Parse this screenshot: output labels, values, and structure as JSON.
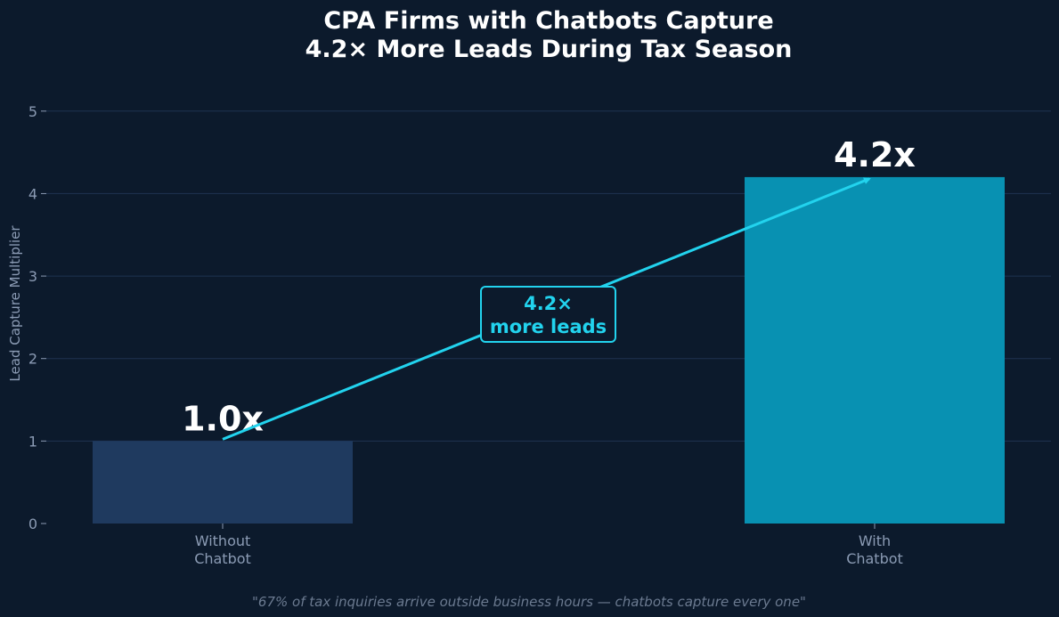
{
  "chart_data": {
    "type": "bar",
    "title_lines": [
      "CPA Firms with Chatbots Capture",
      "4.2× More Leads During Tax Season"
    ],
    "ylabel": "Lead Capture Multiplier",
    "xlabel": "",
    "ylim": [
      0,
      5.3
    ],
    "yticks": [
      0,
      1,
      2,
      3,
      4,
      5
    ],
    "grid": true,
    "categories": [
      [
        "Without",
        "Chatbot"
      ],
      [
        "With",
        "Chatbot"
      ]
    ],
    "values": [
      1.0,
      4.2
    ],
    "value_labels": [
      "1.0x",
      "4.2x"
    ],
    "bar_colors": [
      "#1f3a5f",
      "#0891b2"
    ],
    "annotation": {
      "lines": [
        "4.2×",
        "more leads"
      ],
      "color": "#22d3ee",
      "from_category": 0,
      "to_category": 1
    },
    "footnote": "\"67% of tax inquiries arrive outside business hours — chatbots capture every one\""
  }
}
